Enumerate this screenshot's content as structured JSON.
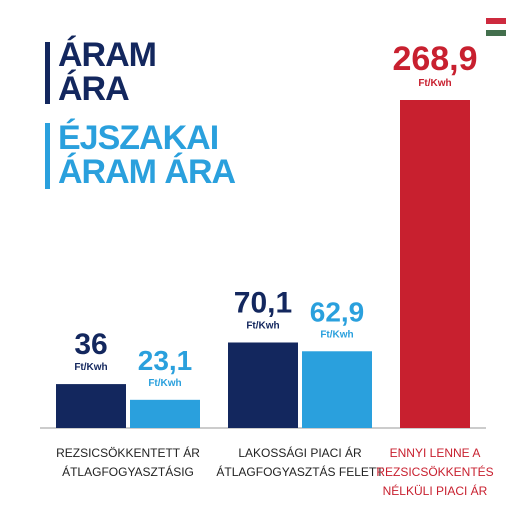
{
  "chart_data": {
    "type": "bar",
    "categories": [
      "REZSICSÖKKENTETT ÁR\nÁTLAGFOGYASZTÁSIG",
      "LAKOSSÁGI PIACI ÁR\nÁTLAGFOGYASZTÁS FELETT",
      "ENNYI LENNE A\nREZSICSÖKKENTÉS\nNÉLKÜLI PIACI ÁR"
    ],
    "unit": "Ft/Kwh",
    "series": [
      {
        "name": "ÁRAM ÁRA",
        "color": "#13275e",
        "values": [
          36,
          70.1,
          null
        ],
        "value_labels": [
          "36",
          "70,1",
          null
        ]
      },
      {
        "name": "ÉJSZAKAI ÁRAM ÁRA",
        "color": "#2aa0dd",
        "values": [
          23.1,
          62.9,
          null
        ],
        "value_labels": [
          "23,1",
          "62,9",
          null
        ]
      },
      {
        "color": "#c8202f",
        "values": [
          null,
          null,
          268.9
        ],
        "value_labels": [
          null,
          null,
          "268,9"
        ]
      }
    ]
  }
}
